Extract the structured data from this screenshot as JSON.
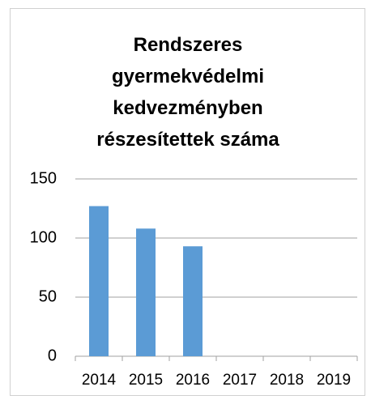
{
  "chart_data": {
    "type": "bar",
    "title": "Rendszeres gyermekvédelmi kedvezményben részesítettek száma",
    "categories": [
      "2014",
      "2015",
      "2016",
      "2017",
      "2018",
      "2019"
    ],
    "values": [
      127,
      108,
      93,
      null,
      null,
      null
    ],
    "color": "#5b9bd5",
    "ylim": [
      0,
      150
    ],
    "yticks": [
      0,
      50,
      100,
      150
    ],
    "grid": true
  }
}
